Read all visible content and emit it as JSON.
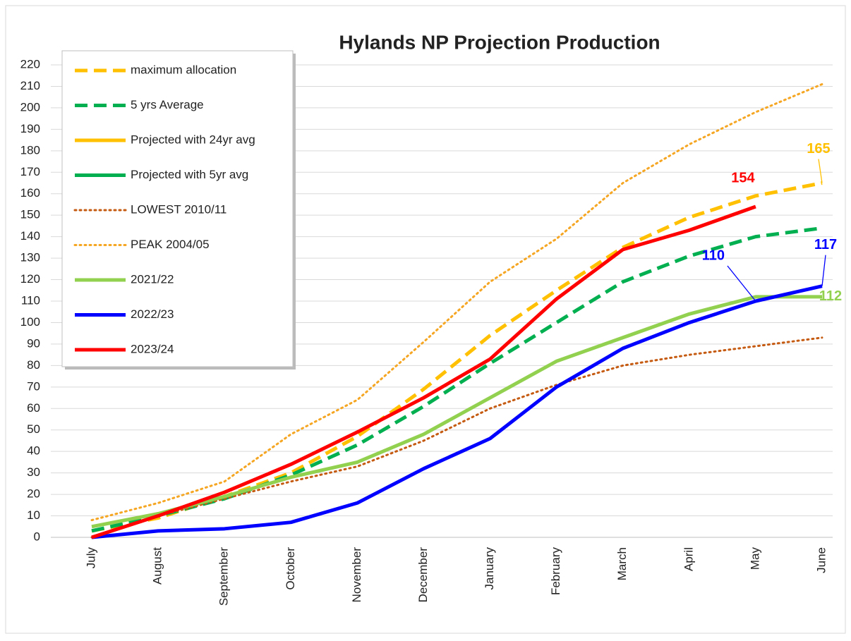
{
  "chart_data": {
    "type": "line",
    "title": "Hylands NP Projection Production",
    "categories": [
      "July",
      "August",
      "September",
      "October",
      "November",
      "December",
      "January",
      "February",
      "March",
      "April",
      "May",
      "June"
    ],
    "ylim": [
      0,
      220
    ],
    "yticks": [
      0,
      10,
      20,
      30,
      40,
      50,
      60,
      70,
      80,
      90,
      100,
      110,
      120,
      130,
      140,
      150,
      160,
      170,
      180,
      190,
      200,
      210,
      220
    ],
    "grid": true,
    "legend": "upper left",
    "series": [
      {
        "name": "maximum allocation",
        "color": "#ffc000",
        "style": "dashed",
        "values": [
          3,
          9,
          19,
          30,
          47,
          69,
          94,
          115,
          135,
          149,
          159,
          165
        ],
        "value_labels": [
          null,
          null,
          null,
          null,
          null,
          null,
          null,
          null,
          null,
          null,
          null,
          "165"
        ]
      },
      {
        "name": "5 yrs Average",
        "color": "#00b050",
        "style": "dashed",
        "values": [
          3,
          10,
          18,
          29,
          43,
          61,
          81,
          100,
          119,
          131,
          140,
          144
        ]
      },
      {
        "name": "Projected with 24yr avg",
        "color": "#ffc000",
        "style": "solid",
        "values": [
          null,
          null,
          null,
          null,
          null,
          null,
          null,
          null,
          null,
          null,
          null,
          null
        ]
      },
      {
        "name": "Projected  with 5yr avg",
        "color": "#00b050",
        "style": "solid",
        "values": [
          null,
          null,
          null,
          null,
          null,
          null,
          null,
          null,
          null,
          null,
          null,
          null
        ]
      },
      {
        "name": "LOWEST 2010/11",
        "color": "#c55a11",
        "style": "dotted",
        "values": [
          0,
          10,
          18,
          26,
          33,
          45,
          60,
          71,
          80,
          85,
          89,
          93
        ]
      },
      {
        "name": "PEAK 2004/05",
        "color": "#f5a623",
        "style": "dotted",
        "values": [
          8,
          16,
          26,
          48,
          64,
          91,
          119,
          139,
          165,
          183,
          198,
          211
        ]
      },
      {
        "name": "2021/22",
        "color": "#92d050",
        "style": "solid",
        "values": [
          5,
          11,
          19,
          28,
          35,
          48,
          65,
          82,
          93,
          104,
          112,
          112
        ],
        "value_labels": [
          null,
          null,
          null,
          null,
          null,
          null,
          null,
          null,
          null,
          null,
          null,
          "112"
        ]
      },
      {
        "name": "2022/23",
        "color": "#0000ff",
        "style": "solid",
        "values": [
          0,
          3,
          4,
          7,
          16,
          32,
          46,
          70,
          88,
          100,
          110,
          117
        ],
        "value_labels": [
          null,
          null,
          null,
          null,
          null,
          null,
          null,
          null,
          null,
          null,
          "110",
          "117"
        ]
      },
      {
        "name": "2023/24",
        "color": "#ff0000",
        "style": "solid",
        "values": [
          0,
          10,
          21,
          34,
          49,
          65,
          83,
          111,
          134,
          143,
          154,
          null
        ],
        "value_labels": [
          null,
          null,
          null,
          null,
          null,
          null,
          null,
          null,
          null,
          null,
          "154",
          null
        ]
      }
    ]
  }
}
